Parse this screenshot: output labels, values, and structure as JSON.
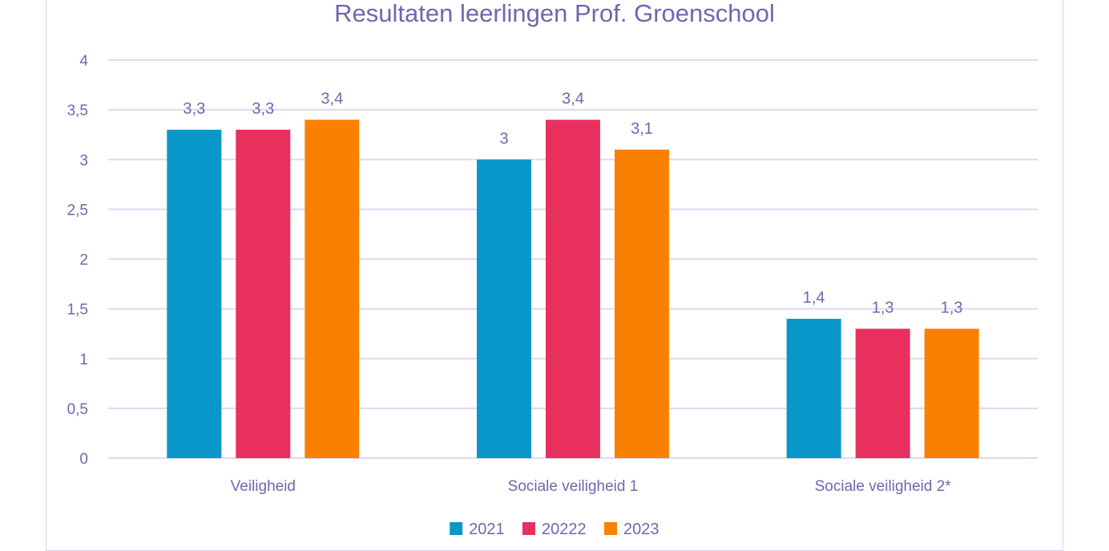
{
  "chart_data": {
    "type": "bar",
    "title": "Resultaten leerlingen Prof. Groenschool",
    "categories": [
      "Veiligheid",
      "Sociale veiligheid 1",
      "Sociale veiligheid 2*"
    ],
    "series": [
      {
        "name": "2021",
        "values": [
          3.3,
          3.0,
          1.4
        ],
        "labels": [
          "3,3",
          "3",
          "1,4"
        ],
        "color": "#0797c9"
      },
      {
        "name": "20222",
        "values": [
          3.3,
          3.4,
          1.3
        ],
        "labels": [
          "3,3",
          "3,4",
          "1,3"
        ],
        "color": "#e8305e"
      },
      {
        "name": "2023",
        "values": [
          3.4,
          3.1,
          1.3
        ],
        "labels": [
          "3,4",
          "3,1",
          "1,3"
        ],
        "color": "#fb8000"
      }
    ],
    "ylim": [
      0,
      4
    ],
    "yticks": [
      0,
      0.5,
      1,
      1.5,
      2,
      2.5,
      3,
      3.5,
      4
    ],
    "ytick_labels": [
      "0",
      "0,5",
      "1",
      "1,5",
      "2",
      "2,5",
      "3",
      "3,5",
      "4"
    ],
    "grid": true,
    "legend": "bottom-center"
  },
  "colors": {
    "text": "#6d68b0",
    "grid": "#dcdaf0",
    "border": "#d6d3ea"
  }
}
